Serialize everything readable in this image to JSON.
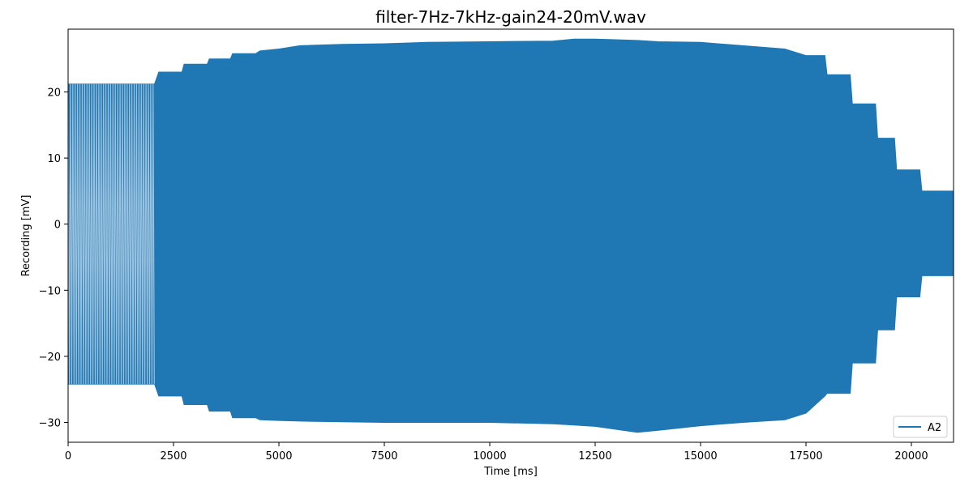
{
  "chart_data": {
    "type": "line",
    "title": "filter-7Hz-7kHz-gain24-20mV.wav",
    "xlabel": "Time [ms]",
    "ylabel": "Recording [mV]",
    "xlim": [
      0,
      21000
    ],
    "ylim": [
      -33,
      29.5
    ],
    "xticks": [
      0,
      2500,
      5000,
      7500,
      10000,
      12500,
      15000,
      17500,
      20000
    ],
    "xtick_labels": [
      "0",
      "2500",
      "5000",
      "7500",
      "10000",
      "12500",
      "15000",
      "17500",
      "20000"
    ],
    "yticks": [
      -30,
      -20,
      -10,
      0,
      10,
      20
    ],
    "ytick_labels": [
      "−30",
      "−20",
      "−10",
      "0",
      "10",
      "20"
    ],
    "grid": false,
    "legend_position": "lower-right",
    "series": [
      {
        "name": "A2",
        "color": "#1f77b4",
        "envelope": {
          "x": [
            0,
            2050,
            2150,
            2700,
            2750,
            3300,
            3350,
            3850,
            3900,
            4450,
            4550,
            5000,
            5500,
            6500,
            7500,
            8500,
            10000,
            11500,
            12000,
            12500,
            13500,
            14000,
            15000,
            16000,
            17000,
            17500,
            17950,
            18000,
            18550,
            18600,
            19150,
            19200,
            19600,
            19650,
            20200,
            20250,
            21000
          ],
          "upper": [
            21.2,
            21.2,
            23.0,
            23.0,
            24.2,
            24.2,
            25.0,
            25.0,
            25.8,
            25.8,
            26.2,
            26.5,
            27.0,
            27.2,
            27.3,
            27.5,
            27.6,
            27.7,
            28.0,
            28.0,
            27.8,
            27.6,
            27.5,
            27.0,
            26.5,
            25.5,
            25.5,
            22.6,
            22.6,
            18.2,
            18.2,
            13.0,
            13.0,
            8.2,
            8.2,
            5.0,
            5.0
          ],
          "lower": [
            -24.2,
            -24.2,
            -26.0,
            -26.0,
            -27.3,
            -27.3,
            -28.3,
            -28.3,
            -29.3,
            -29.3,
            -29.6,
            -29.7,
            -29.8,
            -29.9,
            -30.0,
            -30.0,
            -30.0,
            -30.2,
            -30.4,
            -30.6,
            -31.5,
            -31.2,
            -30.5,
            -30.0,
            -29.6,
            -28.6,
            -26.0,
            -25.6,
            -25.6,
            -21.0,
            -21.0,
            -16.0,
            -16.0,
            -11.0,
            -11.0,
            -7.8,
            -7.8
          ]
        }
      }
    ]
  }
}
